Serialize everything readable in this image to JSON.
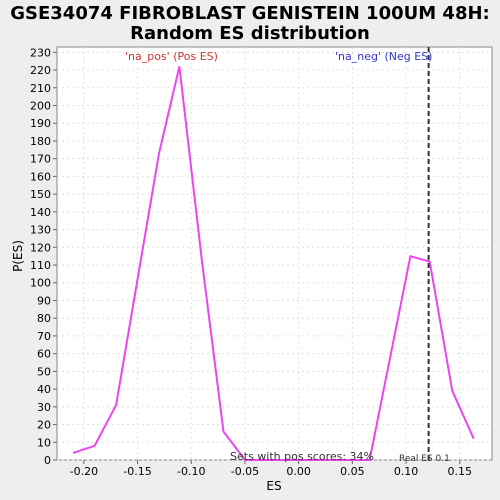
{
  "chart_data": {
    "type": "line",
    "title_line1": "GSE34074 FIBROBLAST GENISTEIN 100UM 48H:",
    "title_line2": "Random ES distribution",
    "xlabel": "ES",
    "ylabel": "P(ES)",
    "xlim": [
      -0.225,
      0.18
    ],
    "ylim": [
      0,
      233
    ],
    "x_ticks": [
      -0.2,
      -0.15,
      -0.1,
      -0.05,
      0.0,
      0.05,
      0.1,
      0.15
    ],
    "x_tick_labels": [
      "-0.20",
      "-0.15",
      "-0.10",
      "-0.05",
      "0.00",
      "0.05",
      "0.10",
      "0.15"
    ],
    "y_ticks": [
      0,
      10,
      20,
      30,
      40,
      50,
      60,
      70,
      80,
      90,
      100,
      110,
      120,
      130,
      140,
      150,
      160,
      170,
      180,
      190,
      200,
      210,
      220,
      230
    ],
    "grid": true,
    "series": [
      {
        "color": "#ee44ee",
        "x": [
          -0.21,
          -0.19,
          -0.17,
          -0.13,
          -0.111,
          -0.09,
          -0.07,
          -0.05,
          -0.03,
          0.0,
          0.03,
          0.066,
          0.104,
          0.122,
          0.143,
          0.163
        ],
        "y": [
          4,
          8,
          31,
          173,
          222,
          112,
          16,
          0,
          0,
          0,
          0,
          0,
          115,
          112,
          39,
          12
        ]
      }
    ],
    "real_es": 0.121,
    "annotations": {
      "pos_label": "'na_pos' (Pos ES)",
      "neg_label": "'na_neg' (Neg ES)",
      "pos_score": "Sets with pos scores: 34%",
      "real_es_label": "Real ES 0.1"
    },
    "colors": {
      "pos_label": "#cc3333",
      "neg_label": "#3333cc",
      "line": "#ee44ee",
      "real_es_line": "#333333"
    }
  }
}
